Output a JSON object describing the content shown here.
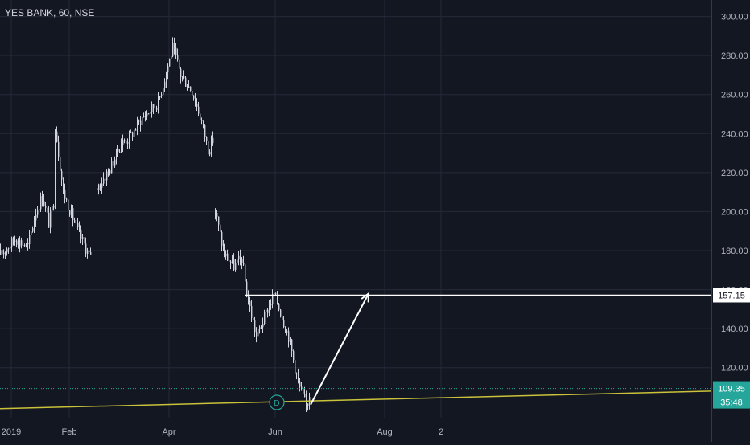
{
  "header": {
    "title": "YES BANK, 60, NSE"
  },
  "colors": {
    "background": "#131722",
    "grid": "#242a3a",
    "candle": "#d1d4dc",
    "axis_text": "#b2b5be",
    "support_line": "#c9c23a",
    "arrow": "#ffffff",
    "last_price_line": "#26a69a",
    "last_price_badge": "#26a69a",
    "dividend_marker": "#26a69a"
  },
  "chart_data": {
    "type": "candlestick",
    "title": "YES BANK, 60, NSE",
    "y_axis": {
      "ticks": [
        120,
        140,
        160,
        180,
        200,
        220,
        240,
        260,
        280,
        300
      ],
      "tick_labels": [
        "120.00",
        "140.00",
        "160.00",
        "180.00",
        "200.00",
        "220.00",
        "240.00",
        "260.00",
        "280.00",
        "300.00"
      ],
      "range": [
        96,
        306
      ]
    },
    "x_axis": {
      "tick_labels": [
        "2019",
        "Feb",
        "Apr",
        "Jun",
        "Aug",
        "2"
      ]
    },
    "price_path": [
      {
        "label": "2019",
        "v": 178
      },
      {
        "label": "",
        "v": 186
      },
      {
        "label": "",
        "v": 182
      },
      {
        "label": "",
        "v": 200
      },
      {
        "label": "",
        "v": 208
      },
      {
        "label": "",
        "v": 194
      },
      {
        "label": "",
        "v": 205
      },
      {
        "label": "",
        "v": 244
      },
      {
        "label": "",
        "v": 210
      },
      {
        "label": "",
        "v": 190
      },
      {
        "label": "",
        "v": 176
      },
      {
        "label": "",
        "v": 168
      },
      {
        "label": "",
        "v": 212
      },
      {
        "label": "",
        "v": 222
      },
      {
        "label": "",
        "v": 235
      },
      {
        "label": "",
        "v": 238
      },
      {
        "label": "",
        "v": 248
      },
      {
        "label": "",
        "v": 256
      },
      {
        "label": "Apr",
        "v": 278
      },
      {
        "label": "",
        "v": 284
      },
      {
        "label": "",
        "v": 270
      },
      {
        "label": "",
        "v": 262
      },
      {
        "label": "",
        "v": 246
      },
      {
        "label": "",
        "v": 232
      },
      {
        "label": "",
        "v": 238
      },
      {
        "label": "",
        "v": 200
      },
      {
        "label": "",
        "v": 178
      },
      {
        "label": "",
        "v": 172
      },
      {
        "label": "",
        "v": 176
      },
      {
        "label": "",
        "v": 158
      },
      {
        "label": "",
        "v": 136
      },
      {
        "label": "",
        "v": 150
      },
      {
        "label": "Jun",
        "v": 158
      },
      {
        "label": "",
        "v": 146
      },
      {
        "label": "",
        "v": 136
      },
      {
        "label": "",
        "v": 112
      },
      {
        "label": "",
        "v": 100
      },
      {
        "label": "",
        "v": 110
      }
    ],
    "gaps_after_index": [
      11,
      24
    ],
    "horizontal_level": {
      "value": 157.15,
      "label": "157.15"
    },
    "last_price": {
      "value": 109.35,
      "label": "109.35",
      "countdown": "35:48"
    },
    "support_trendline": {
      "start": 99,
      "end": 108
    },
    "projection_arrow": {
      "from": 101,
      "to": 158
    },
    "event_marker": {
      "label": "D"
    }
  }
}
